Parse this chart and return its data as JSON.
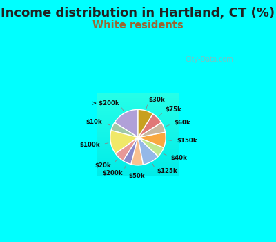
{
  "title": "Income distribution in Hartland, CT (%)",
  "subtitle": "White residents",
  "bg_color": "#00FFFF",
  "chart_bg": "#d8f0e8",
  "title_fontsize": 13,
  "subtitle_fontsize": 10.5,
  "subtitle_color": "#996633",
  "title_color": "#222222",
  "labels": [
    "> $200k",
    "$10k",
    "$100k",
    "$20k",
    "$200k",
    "$50k",
    "$125k",
    "$40k",
    "$150k",
    "$60k",
    "$75k",
    "$30k"
  ],
  "values": [
    16,
    5,
    14,
    6,
    5,
    7,
    10,
    6,
    9,
    6,
    7,
    9
  ],
  "colors": [
    "#b0a0d8",
    "#a0c8a8",
    "#f0e868",
    "#e89898",
    "#8888cc",
    "#f8c090",
    "#94b8e8",
    "#c0e890",
    "#f8a840",
    "#c8b8a0",
    "#e07878",
    "#c8a020"
  ],
  "startangle": 90,
  "watermark": "City-Data.com"
}
